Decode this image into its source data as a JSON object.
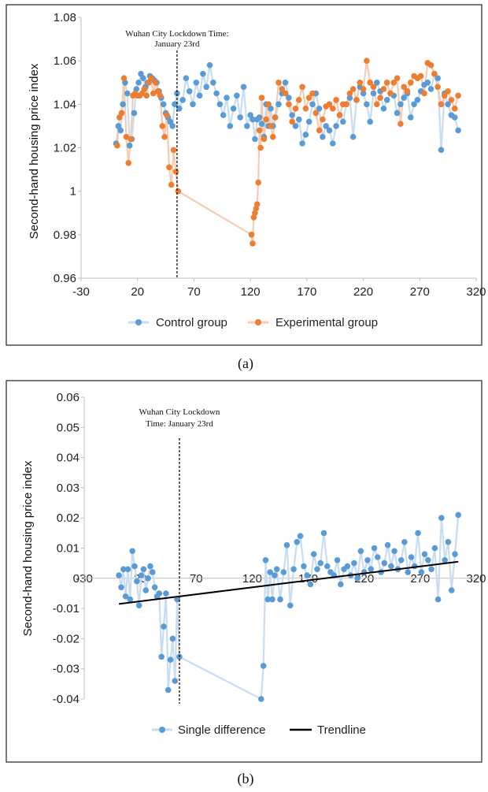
{
  "chart_data": [
    {
      "panel_caption": "(a)",
      "type": "scatter",
      "ylabel": "Second-hand housing price index",
      "xlim": [
        -30,
        320
      ],
      "ylim": [
        0.96,
        1.08
      ],
      "xticks": [
        -30,
        20,
        70,
        120,
        170,
        220,
        270,
        320
      ],
      "xtick_labels": [
        "-30",
        "20",
        "70",
        "120",
        "170",
        "220",
        "270",
        "320"
      ],
      "yticks": [
        0.96,
        0.98,
        1.0,
        1.02,
        1.04,
        1.06,
        1.08
      ],
      "ytick_labels": [
        "0.96",
        "0.98",
        "1",
        "1.02",
        "1.04",
        "1.06",
        "1.08"
      ],
      "annotation": {
        "lines": [
          "Wuhan City Lockdown Time:",
          "January 23rd"
        ],
        "x": 55
      },
      "legend": {
        "placement": "bottom"
      },
      "series": [
        {
          "name": "Control group",
          "color": "#5B9BD5",
          "x": [
            1,
            3,
            5,
            7,
            9,
            11,
            13,
            15,
            17,
            19,
            21,
            23,
            25,
            27,
            29,
            31,
            33,
            35,
            37,
            39,
            41,
            43,
            45,
            47,
            49,
            51,
            53,
            55,
            57,
            60,
            63,
            66,
            69,
            72,
            75,
            78,
            81,
            84,
            87,
            90,
            93,
            96,
            99,
            102,
            105,
            108,
            111,
            114,
            117,
            120,
            122,
            124,
            126,
            128,
            130,
            132,
            134,
            136,
            138,
            140,
            142,
            145,
            148,
            151,
            154,
            157,
            160,
            163,
            166,
            169,
            172,
            175,
            178,
            181,
            184,
            187,
            190,
            193,
            196,
            199,
            202,
            205,
            208,
            211,
            214,
            217,
            220,
            223,
            226,
            229,
            232,
            235,
            238,
            241,
            244,
            247,
            250,
            253,
            256,
            259,
            262,
            265,
            268,
            271,
            274,
            277,
            280,
            283,
            286,
            289,
            292,
            295,
            298,
            301,
            304
          ],
          "y": [
            1.022,
            1.03,
            1.028,
            1.04,
            1.05,
            1.045,
            1.021,
            1.024,
            1.036,
            1.047,
            1.05,
            1.054,
            1.052,
            1.048,
            1.05,
            1.053,
            1.052,
            1.051,
            1.05,
            1.046,
            1.043,
            1.04,
            1.036,
            1.034,
            1.032,
            1.03,
            1.04,
            1.045,
            1.038,
            1.042,
            1.052,
            1.046,
            1.04,
            1.05,
            1.044,
            1.054,
            1.048,
            1.058,
            1.05,
            1.045,
            1.04,
            1.035,
            1.043,
            1.03,
            1.038,
            1.044,
            1.034,
            1.048,
            1.03,
            1.035,
            1.033,
            1.024,
            1.033,
            1.034,
            1.031,
            1.025,
            1.04,
            1.03,
            1.038,
            1.03,
            1.034,
            1.04,
            1.045,
            1.05,
            1.043,
            1.035,
            1.03,
            1.033,
            1.022,
            1.026,
            1.032,
            1.04,
            1.045,
            1.038,
            1.025,
            1.03,
            1.028,
            1.022,
            1.03,
            1.035,
            1.032,
            1.04,
            1.043,
            1.025,
            1.042,
            1.048,
            1.045,
            1.04,
            1.032,
            1.045,
            1.05,
            1.046,
            1.038,
            1.042,
            1.045,
            1.044,
            1.036,
            1.04,
            1.043,
            1.045,
            1.034,
            1.04,
            1.042,
            1.046,
            1.049,
            1.05,
            1.047,
            1.054,
            1.052,
            1.019,
            1.045,
            1.04,
            1.035,
            1.034,
            1.028
          ]
        },
        {
          "name": "Experimental group",
          "color": "#ED7D31",
          "x": [
            2,
            4,
            6,
            8,
            10,
            12,
            14,
            16,
            18,
            20,
            22,
            24,
            26,
            28,
            30,
            32,
            34,
            36,
            38,
            40,
            42,
            44,
            46,
            48,
            50,
            52,
            54,
            56,
            121,
            122,
            123,
            124,
            125,
            126,
            127,
            128,
            129,
            130,
            132,
            134,
            136,
            138,
            140,
            142,
            145,
            148,
            151,
            154,
            157,
            160,
            163,
            166,
            169,
            172,
            175,
            178,
            181,
            184,
            187,
            190,
            193,
            196,
            199,
            202,
            205,
            208,
            211,
            214,
            217,
            220,
            223,
            226,
            229,
            232,
            235,
            238,
            241,
            244,
            247,
            250,
            253,
            256,
            259,
            262,
            265,
            268,
            271,
            274,
            277,
            280,
            283,
            286,
            289,
            292,
            295,
            298,
            301,
            304
          ],
          "y": [
            1.021,
            1.034,
            1.036,
            1.052,
            1.025,
            1.013,
            1.024,
            1.044,
            1.045,
            1.044,
            1.044,
            1.045,
            1.047,
            1.044,
            1.05,
            1.052,
            1.045,
            1.05,
            1.046,
            1.044,
            1.03,
            1.025,
            1.035,
            1.011,
            1.003,
            1.019,
            1.009,
            1.0,
            0.98,
            0.976,
            0.988,
            0.99,
            0.992,
            0.994,
            1.004,
            1.028,
            1.02,
            1.043,
            1.024,
            1.033,
            1.04,
            1.03,
            1.025,
            1.034,
            1.05,
            1.047,
            1.045,
            1.04,
            1.032,
            1.038,
            1.042,
            1.048,
            1.038,
            1.043,
            1.045,
            1.036,
            1.028,
            1.033,
            1.039,
            1.04,
            1.038,
            1.042,
            1.035,
            1.04,
            1.04,
            1.045,
            1.047,
            1.042,
            1.05,
            1.047,
            1.06,
            1.05,
            1.048,
            1.04,
            1.043,
            1.047,
            1.05,
            1.045,
            1.05,
            1.052,
            1.031,
            1.048,
            1.046,
            1.05,
            1.053,
            1.052,
            1.053,
            1.045,
            1.059,
            1.058,
            1.054,
            1.048,
            1.04,
            1.044,
            1.046,
            1.042,
            1.038,
            1.044
          ]
        }
      ]
    },
    {
      "panel_caption": "(b)",
      "type": "scatter",
      "ylabel": "Second-hand housing price index",
      "xlim": [
        -30,
        320
      ],
      "ylim": [
        -0.04,
        0.06
      ],
      "xticks": [
        -30,
        20,
        70,
        120,
        170,
        220,
        270,
        320
      ],
      "xtick_labels": [
        "-30",
        "20",
        "70",
        "120",
        "170",
        "220",
        "270",
        "320"
      ],
      "yticks": [
        -0.04,
        -0.03,
        -0.02,
        -0.01,
        0,
        0.01,
        0.02,
        0.03,
        0.04,
        0.05,
        0.06
      ],
      "ytick_labels": [
        "-0.04",
        "-0.03",
        "-0.02",
        "-0.01",
        "0",
        "0.01",
        "0.02",
        "0.03",
        "0.04",
        "0.05",
        "0.06"
      ],
      "annotation": {
        "lines": [
          "Wuhan City Lockdown",
          "Time: January 23rd"
        ],
        "x": 55
      },
      "legend": {
        "placement": "bottom"
      },
      "series": [
        {
          "name": "Single difference",
          "color": "#5B9BD5",
          "x": [
            1,
            3,
            5,
            7,
            9,
            11,
            13,
            15,
            17,
            19,
            21,
            23,
            25,
            27,
            29,
            31,
            33,
            35,
            37,
            39,
            41,
            43,
            45,
            47,
            49,
            51,
            53,
            55,
            128,
            130,
            132,
            134,
            136,
            138,
            140,
            142,
            145,
            148,
            151,
            154,
            157,
            160,
            163,
            166,
            169,
            172,
            175,
            178,
            181,
            184,
            187,
            190,
            193,
            196,
            199,
            202,
            205,
            208,
            211,
            214,
            217,
            220,
            223,
            226,
            229,
            232,
            235,
            238,
            241,
            244,
            247,
            250,
            253,
            256,
            259,
            262,
            265,
            268,
            271,
            274,
            277,
            280,
            283,
            286,
            289,
            292,
            295,
            298,
            301,
            304
          ],
          "y": [
            0.001,
            -0.003,
            0.003,
            -0.006,
            0.003,
            -0.007,
            0.009,
            0.004,
            -0.001,
            -0.009,
            0.001,
            0.003,
            -0.004,
            0.0,
            0.004,
            0.002,
            -0.003,
            -0.006,
            -0.005,
            -0.026,
            -0.016,
            -0.005,
            -0.037,
            -0.027,
            -0.02,
            -0.034,
            -0.007,
            -0.026,
            -0.04,
            -0.029,
            0.006,
            -0.007,
            0.002,
            -0.007,
            0.001,
            0.003,
            -0.007,
            0.002,
            0.011,
            -0.009,
            0.003,
            0.012,
            0.014,
            0.004,
            0.001,
            -0.002,
            0.008,
            0.003,
            0.005,
            0.015,
            0.004,
            0.002,
            0.001,
            0.006,
            -0.002,
            0.003,
            0.004,
            0.001,
            0.005,
            0.0,
            0.009,
            0.002,
            0.006,
            0.003,
            0.01,
            0.007,
            0.002,
            0.005,
            0.011,
            0.004,
            0.009,
            0.003,
            0.006,
            0.012,
            0.002,
            0.007,
            0.004,
            0.015,
            0.002,
            0.008,
            0.006,
            0.003,
            0.01,
            -0.007,
            0.02,
            0.006,
            0.012,
            -0.004,
            0.008,
            0.021
          ]
        }
      ],
      "trendline": {
        "name": "Trendline",
        "color": "#000000",
        "x": [
          1,
          304
        ],
        "y": [
          -0.0085,
          0.0055
        ]
      }
    }
  ]
}
